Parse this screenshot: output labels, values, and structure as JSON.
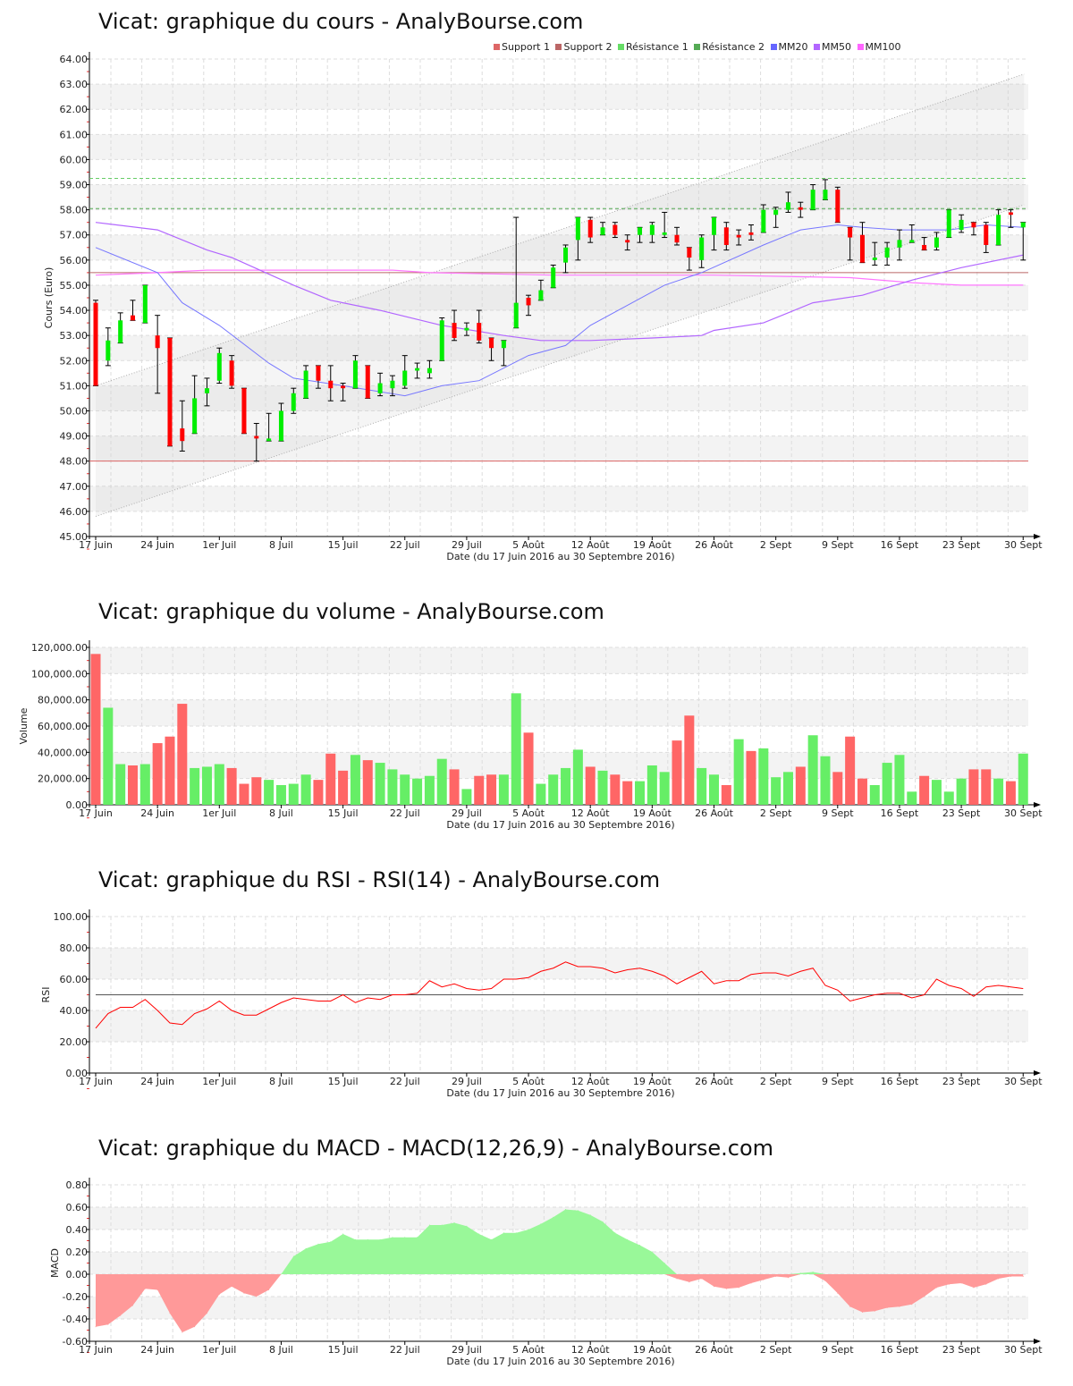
{
  "colors": {
    "up": "#00ee00",
    "down": "#ff0000",
    "vol_up": "#66ee66",
    "vol_down": "#ff6666",
    "mm20": "#7777ff",
    "mm50": "#b266ff",
    "mm100": "#ff77ff",
    "support1": "#dd6666",
    "support2": "#bb6666",
    "res1": "#66cc66",
    "res2": "#55aa55",
    "rsi": "#ff0000",
    "macd_pos": "#99f899",
    "macd_neg": "#ff9999"
  },
  "x_axis": {
    "labels": [
      "17 Juin",
      "24 Juin",
      "1er Juil",
      "8 Juil",
      "15 Juil",
      "22 Juil",
      "29 Juil",
      "5 Août",
      "12 Août",
      "19 Août",
      "26 Août",
      "2 Sept",
      "9 Sept",
      "16 Sept",
      "23 Sept",
      "30 Sept"
    ],
    "label_step_days": 5,
    "title": "Date (du 17 Juin 2016 au 30 Septembre 2016)"
  },
  "legend": [
    {
      "label": "Support 1",
      "color": "#dd6666"
    },
    {
      "label": "Support 2",
      "color": "#bb6666"
    },
    {
      "label": "Résistance 1",
      "color": "#66dd66"
    },
    {
      "label": "Résistance 2",
      "color": "#55aa55"
    },
    {
      "label": "MM20",
      "color": "#6666ff"
    },
    {
      "label": "MM50",
      "color": "#b266ff"
    },
    {
      "label": "MM100",
      "color": "#ff66ff"
    }
  ],
  "chart_data": [
    {
      "type": "candlestick",
      "title": "Vicat: graphique du cours - AnalyBourse.com",
      "ylabel": "Cours (Euro)",
      "ylim": [
        45,
        64
      ],
      "ystep": 1,
      "decimals": 2,
      "ohlc": [
        [
          54.3,
          54.4,
          51.0,
          51.0
        ],
        [
          52.0,
          53.3,
          51.8,
          52.8
        ],
        [
          52.7,
          53.9,
          52.7,
          53.6
        ],
        [
          53.8,
          54.4,
          53.6,
          53.6
        ],
        [
          53.5,
          55.0,
          53.5,
          55.0
        ],
        [
          53.0,
          53.8,
          50.7,
          52.5
        ],
        [
          52.9,
          52.9,
          48.6,
          48.6
        ],
        [
          49.3,
          50.4,
          48.4,
          48.8
        ],
        [
          49.1,
          51.4,
          49.1,
          50.5
        ],
        [
          50.7,
          51.3,
          50.2,
          50.9
        ],
        [
          51.2,
          52.5,
          51.1,
          52.3
        ],
        [
          52.0,
          52.2,
          50.9,
          51.0
        ],
        [
          50.9,
          50.9,
          49.1,
          49.1
        ],
        [
          49.0,
          49.5,
          48.0,
          48.9
        ],
        [
          48.8,
          49.9,
          48.8,
          48.9
        ],
        [
          48.8,
          50.3,
          48.8,
          50.0
        ],
        [
          50.0,
          50.9,
          49.9,
          50.7
        ],
        [
          50.5,
          51.8,
          50.5,
          51.6
        ],
        [
          51.8,
          51.8,
          50.9,
          51.2
        ],
        [
          51.2,
          51.8,
          50.4,
          50.9
        ],
        [
          51.0,
          51.1,
          50.4,
          50.9
        ],
        [
          50.9,
          52.2,
          50.9,
          52.0
        ],
        [
          51.8,
          51.8,
          50.5,
          50.5
        ],
        [
          50.7,
          51.5,
          50.6,
          51.1
        ],
        [
          50.9,
          51.4,
          50.6,
          51.2
        ],
        [
          51.0,
          52.2,
          50.9,
          51.6
        ],
        [
          51.6,
          51.9,
          51.3,
          51.7
        ],
        [
          51.5,
          52.0,
          51.3,
          51.7
        ],
        [
          52.0,
          53.7,
          52.0,
          53.6
        ],
        [
          53.5,
          54.0,
          52.8,
          52.9
        ],
        [
          53.2,
          53.5,
          53.0,
          53.3
        ],
        [
          53.5,
          54.0,
          52.7,
          52.8
        ],
        [
          52.9,
          52.9,
          52.0,
          52.5
        ],
        [
          52.5,
          52.8,
          51.8,
          52.8
        ],
        [
          53.3,
          57.7,
          53.3,
          54.3
        ],
        [
          54.5,
          54.6,
          53.8,
          54.2
        ],
        [
          54.4,
          55.2,
          54.4,
          54.8
        ],
        [
          54.9,
          55.8,
          54.9,
          55.7
        ],
        [
          55.9,
          56.6,
          55.5,
          56.5
        ],
        [
          56.8,
          57.7,
          56.0,
          57.7
        ],
        [
          57.6,
          57.7,
          56.7,
          56.9
        ],
        [
          57.0,
          57.5,
          57.0,
          57.3
        ],
        [
          57.4,
          57.5,
          56.9,
          57.0
        ],
        [
          56.8,
          57.0,
          56.4,
          56.7
        ],
        [
          57.0,
          57.3,
          56.7,
          57.3
        ],
        [
          57.0,
          57.5,
          56.7,
          57.4
        ],
        [
          57.0,
          57.9,
          56.9,
          57.1
        ],
        [
          57.0,
          57.3,
          56.6,
          56.7
        ],
        [
          56.5,
          56.5,
          55.6,
          56.1
        ],
        [
          56.0,
          57.0,
          55.7,
          56.9
        ],
        [
          57.0,
          57.7,
          56.4,
          57.7
        ],
        [
          57.3,
          57.5,
          56.4,
          56.6
        ],
        [
          57.0,
          57.2,
          56.6,
          56.9
        ],
        [
          57.1,
          57.4,
          56.8,
          57.0
        ],
        [
          57.1,
          58.2,
          57.1,
          58.0
        ],
        [
          57.8,
          58.1,
          57.3,
          58.0
        ],
        [
          58.0,
          58.7,
          57.9,
          58.3
        ],
        [
          58.1,
          58.3,
          57.7,
          58.0
        ],
        [
          58.0,
          59.0,
          58.0,
          58.8
        ],
        [
          58.4,
          59.2,
          58.4,
          58.8
        ],
        [
          58.8,
          58.9,
          57.5,
          57.5
        ],
        [
          57.3,
          57.3,
          56.0,
          56.9
        ],
        [
          57.0,
          57.5,
          55.9,
          55.9
        ],
        [
          56.0,
          56.7,
          55.8,
          56.1
        ],
        [
          56.1,
          56.7,
          55.8,
          56.5
        ],
        [
          56.5,
          57.2,
          56.0,
          56.8
        ],
        [
          56.7,
          57.4,
          56.7,
          56.8
        ],
        [
          56.6,
          56.9,
          56.4,
          56.4
        ],
        [
          56.5,
          57.1,
          56.4,
          56.9
        ],
        [
          56.9,
          58.0,
          56.9,
          58.0
        ],
        [
          57.2,
          57.8,
          57.1,
          57.6
        ],
        [
          57.5,
          57.5,
          57.0,
          57.3
        ],
        [
          57.4,
          57.5,
          56.3,
          56.6
        ],
        [
          56.6,
          58.0,
          56.6,
          57.8
        ],
        [
          57.9,
          58.0,
          57.3,
          57.8
        ],
        [
          57.3,
          57.5,
          56.0,
          57.5
        ]
      ],
      "mm20": [
        [
          0,
          56.5
        ],
        [
          5,
          55.5
        ],
        [
          7,
          54.3
        ],
        [
          10,
          53.4
        ],
        [
          14,
          51.9
        ],
        [
          16,
          51.3
        ],
        [
          20,
          51.0
        ],
        [
          25,
          50.6
        ],
        [
          28,
          51.0
        ],
        [
          31,
          51.2
        ],
        [
          35,
          52.2
        ],
        [
          38,
          52.6
        ],
        [
          40,
          53.4
        ],
        [
          43,
          54.2
        ],
        [
          46,
          55.0
        ],
        [
          49,
          55.5
        ],
        [
          54,
          56.6
        ],
        [
          57,
          57.2
        ],
        [
          60,
          57.4
        ],
        [
          62,
          57.3
        ],
        [
          65,
          57.2
        ],
        [
          69,
          57.2
        ],
        [
          72,
          57.4
        ],
        [
          75,
          57.3
        ]
      ],
      "mm50": [
        [
          0,
          57.5
        ],
        [
          5,
          57.2
        ],
        [
          9,
          56.4
        ],
        [
          11,
          56.1
        ],
        [
          16,
          55.0
        ],
        [
          19,
          54.4
        ],
        [
          23,
          54.0
        ],
        [
          28,
          53.4
        ],
        [
          33,
          53.0
        ],
        [
          36,
          52.8
        ],
        [
          40,
          52.8
        ],
        [
          45,
          52.9
        ],
        [
          49,
          53.0
        ],
        [
          50,
          53.2
        ],
        [
          54,
          53.5
        ],
        [
          58,
          54.3
        ],
        [
          62,
          54.6
        ],
        [
          66,
          55.2
        ],
        [
          70,
          55.7
        ],
        [
          75,
          56.2
        ]
      ],
      "mm100": [
        [
          0,
          55.4
        ],
        [
          5,
          55.5
        ],
        [
          9,
          55.6
        ],
        [
          24,
          55.6
        ],
        [
          27,
          55.5
        ],
        [
          37,
          55.4
        ],
        [
          50,
          55.4
        ],
        [
          61,
          55.3
        ],
        [
          66,
          55.1
        ],
        [
          70,
          55.0
        ],
        [
          75,
          55.0
        ]
      ],
      "support1": 48.0,
      "support2": 55.5,
      "resistance1": 59.25,
      "resistance2": 58.05,
      "channel": {
        "upper": [
          51.0,
          63.4
        ],
        "lower": [
          45.8,
          58.2
        ]
      }
    },
    {
      "type": "bar",
      "title": "Vicat: graphique du volume - AnalyBourse.com",
      "ylabel": "Volume",
      "ylim": [
        0,
        120000
      ],
      "ystep": 20000,
      "decimals": 2,
      "thousands": true,
      "values": [
        115000,
        74000,
        31000,
        30000,
        31000,
        47000,
        52000,
        77000,
        28000,
        29000,
        31000,
        28000,
        16000,
        21000,
        19000,
        15000,
        16000,
        23000,
        19000,
        39000,
        26000,
        38000,
        34000,
        32000,
        27000,
        23000,
        20000,
        22000,
        35000,
        27000,
        12000,
        22000,
        23000,
        23000,
        85000,
        55000,
        16000,
        23000,
        28000,
        42000,
        29000,
        26000,
        23000,
        18000,
        18000,
        30000,
        25000,
        49000,
        68000,
        28000,
        23000,
        15000,
        50000,
        41000,
        43000,
        21000,
        25000,
        29000,
        53000,
        37000,
        25000,
        52000,
        20000,
        15000,
        32000,
        38000,
        10000,
        22000,
        19000,
        10000,
        20000,
        27000,
        27000,
        20000,
        18000,
        39000
      ],
      "up": [
        0,
        1,
        1,
        0,
        1,
        0,
        0,
        0,
        1,
        1,
        1,
        0,
        0,
        0,
        1,
        1,
        1,
        1,
        0,
        0,
        0,
        1,
        0,
        1,
        1,
        1,
        1,
        1,
        1,
        0,
        1,
        0,
        0,
        1,
        1,
        0,
        1,
        1,
        1,
        1,
        0,
        1,
        0,
        0,
        1,
        1,
        1,
        0,
        0,
        1,
        1,
        0,
        1,
        0,
        1,
        1,
        1,
        0,
        1,
        1,
        0,
        0,
        0,
        1,
        1,
        1,
        1,
        0,
        1,
        1,
        1,
        0,
        0,
        1,
        0,
        1
      ]
    },
    {
      "type": "line",
      "title": "Vicat: graphique du RSI - RSI(14) - AnalyBourse.com",
      "ylabel": "RSI",
      "ylim": [
        0,
        100
      ],
      "ystep": 20,
      "decimals": 2,
      "reference": 50,
      "values": [
        28.6,
        38,
        42,
        42,
        47,
        40,
        32,
        31,
        38,
        41,
        46,
        40,
        37,
        37,
        41,
        45,
        48,
        47,
        46,
        46,
        50,
        45,
        48,
        47,
        50,
        50,
        51,
        59,
        55,
        57,
        54,
        53,
        54,
        60,
        60,
        61,
        65,
        67,
        71,
        68,
        68,
        67,
        64,
        66,
        67,
        65,
        62,
        57,
        61,
        65,
        57,
        59,
        59,
        63,
        64,
        64,
        62,
        65,
        67,
        56,
        53,
        46,
        48,
        50,
        51,
        51,
        48,
        50,
        60,
        56,
        54,
        49,
        55,
        56,
        55,
        54
      ]
    },
    {
      "type": "area",
      "title": "Vicat: graphique du MACD - MACD(12,26,9) - AnalyBourse.com",
      "ylabel": "MACD",
      "ylim": [
        -0.6,
        0.8
      ],
      "ystep": 0.2,
      "decimals": 2,
      "values": [
        -0.47,
        -0.45,
        -0.37,
        -0.28,
        -0.13,
        -0.14,
        -0.35,
        -0.52,
        -0.47,
        -0.35,
        -0.18,
        -0.11,
        -0.17,
        -0.2,
        -0.14,
        0.0,
        0.16,
        0.23,
        0.27,
        0.29,
        0.36,
        0.31,
        0.31,
        0.31,
        0.33,
        0.33,
        0.33,
        0.44,
        0.44,
        0.46,
        0.43,
        0.36,
        0.31,
        0.37,
        0.37,
        0.4,
        0.45,
        0.51,
        0.58,
        0.57,
        0.53,
        0.47,
        0.37,
        0.31,
        0.26,
        0.2,
        0.1,
        -0.04,
        -0.07,
        -0.04,
        -0.11,
        -0.13,
        -0.12,
        -0.08,
        -0.05,
        -0.02,
        -0.03,
        0.01,
        0.02,
        -0.06,
        -0.17,
        -0.29,
        -0.34,
        -0.33,
        -0.3,
        -0.29,
        -0.27,
        -0.2,
        -0.12,
        -0.09,
        -0.08,
        -0.12,
        -0.09,
        -0.04,
        -0.02,
        -0.02
      ]
    }
  ]
}
